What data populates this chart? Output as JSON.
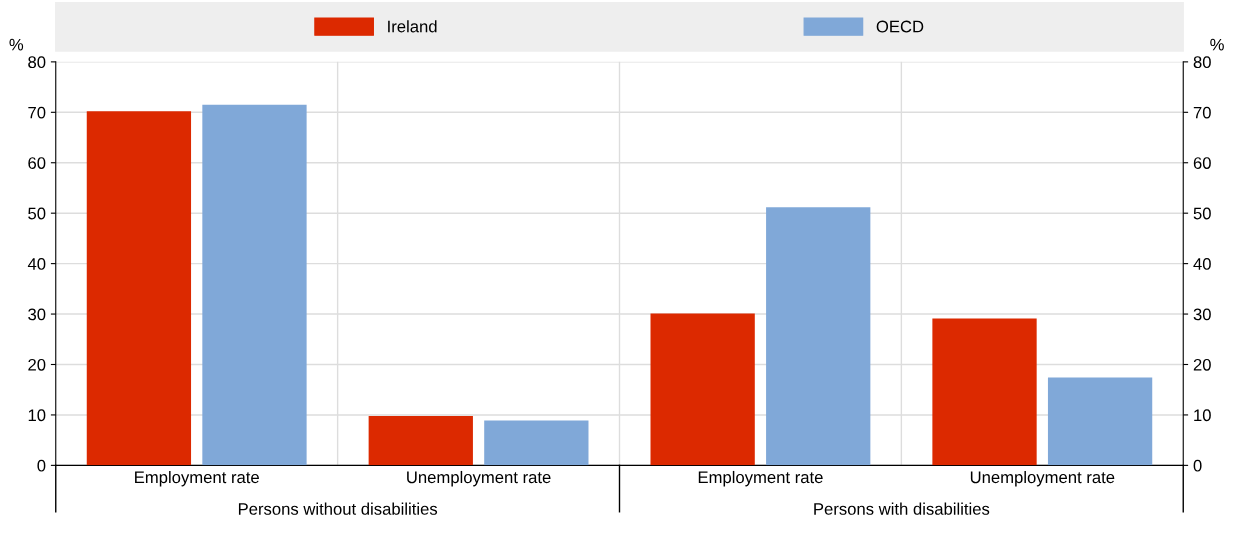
{
  "chart_data": {
    "type": "bar",
    "categories": [
      "Employment rate",
      "Unemployment rate",
      "Employment rate",
      "Unemployment rate"
    ],
    "series": [
      {
        "name": "Ireland",
        "color": "#dc2900",
        "values": [
          70.2,
          9.8,
          30.1,
          29.1
        ]
      },
      {
        "name": "OECD",
        "color": "#80a8d8",
        "values": [
          71.5,
          8.9,
          51.2,
          17.4
        ]
      }
    ],
    "ylabel": "%",
    "y2label": "%",
    "ylim": [
      0,
      80
    ],
    "yticks": [
      0,
      10,
      20,
      30,
      40,
      50,
      60,
      70,
      80
    ],
    "y2lim": [
      0,
      80
    ],
    "y2ticks": [
      0,
      10,
      20,
      30,
      40,
      50,
      60,
      70,
      80
    ],
    "annotations": [
      "Persons without disabilities",
      "Persons with disabilities"
    ],
    "grid": "y",
    "legend": "top"
  }
}
